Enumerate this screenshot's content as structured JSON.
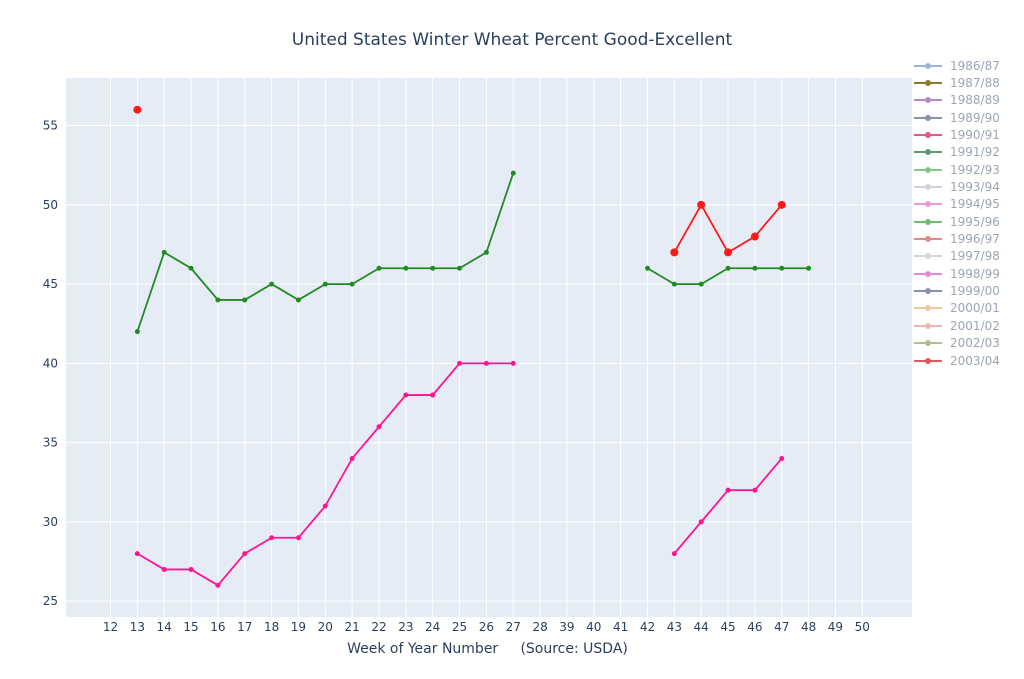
{
  "chart_data": {
    "type": "line",
    "title": "United States Winter Wheat Percent Good-Excellent",
    "xlabel": "Week of Year Number     (Source: USDA)",
    "ylabel": "",
    "x_categories": [
      "12",
      "13",
      "14",
      "15",
      "16",
      "17",
      "18",
      "19",
      "20",
      "21",
      "22",
      "23",
      "24",
      "25",
      "26",
      "27",
      "28",
      "39",
      "40",
      "41",
      "42",
      "43",
      "44",
      "45",
      "46",
      "47",
      "48",
      "49",
      "50"
    ],
    "ylim": [
      24,
      58
    ],
    "yticks": [
      25,
      30,
      35,
      40,
      45,
      50,
      55
    ],
    "grid": true,
    "legend_position": "right",
    "legend": [
      {
        "label": "1986/87",
        "color": "#9db3d8"
      },
      {
        "label": "1987/88",
        "color": "#8a7a2a"
      },
      {
        "label": "1988/89",
        "color": "#b48ac8"
      },
      {
        "label": "1989/90",
        "color": "#8a92a8"
      },
      {
        "label": "1990/91",
        "color": "#e8568a"
      },
      {
        "label": "1991/92",
        "color": "#5c9a6e"
      },
      {
        "label": "1992/93",
        "color": "#7fc88a"
      },
      {
        "label": "1993/94",
        "color": "#cfd3da"
      },
      {
        "label": "1994/95",
        "color": "#e89ad8"
      },
      {
        "label": "1995/96",
        "color": "#6fbf72"
      },
      {
        "label": "1996/97",
        "color": "#e08a8a"
      },
      {
        "label": "1997/98",
        "color": "#d3d6dc"
      },
      {
        "label": "1998/99",
        "color": "#e08ad8"
      },
      {
        "label": "1999/00",
        "color": "#8a90b0"
      },
      {
        "label": "2000/01",
        "color": "#f2c79a"
      },
      {
        "label": "2001/02",
        "color": "#f0b8b0"
      },
      {
        "label": "2002/03",
        "color": "#a8c48a"
      },
      {
        "label": "2003/04",
        "color": "#e05a5a"
      }
    ],
    "series": [
      {
        "color": "#228b22",
        "marker_size": 2.5,
        "segments": [
          {
            "x": [
              "13",
              "14",
              "15",
              "16",
              "17",
              "18",
              "19",
              "20",
              "21",
              "22",
              "23",
              "24",
              "25",
              "26",
              "27"
            ],
            "y": [
              42,
              47,
              46,
              44,
              44,
              45,
              44,
              45,
              45,
              46,
              46,
              46,
              46,
              47,
              52
            ]
          },
          {
            "x": [
              "42",
              "43",
              "44",
              "45",
              "46",
              "47",
              "48"
            ],
            "y": [
              46,
              45,
              45,
              46,
              46,
              46,
              46
            ]
          }
        ]
      },
      {
        "color": "#ff1493",
        "marker_size": 2.5,
        "segments": [
          {
            "x": [
              "13",
              "14",
              "15",
              "16",
              "17",
              "18",
              "19",
              "20",
              "21",
              "22",
              "23",
              "24",
              "25",
              "26",
              "27"
            ],
            "y": [
              28,
              27,
              27,
              26,
              28,
              29,
              29,
              31,
              34,
              36,
              38,
              38,
              40,
              40,
              40
            ]
          },
          {
            "x": [
              "43",
              "44",
              "45",
              "46",
              "47"
            ],
            "y": [
              28,
              30,
              32,
              32,
              34
            ]
          }
        ]
      },
      {
        "color": "#ff1a1a",
        "marker_size": 4,
        "segments": [
          {
            "x": [
              "13"
            ],
            "y": [
              56
            ]
          },
          {
            "x": [
              "43",
              "44",
              "45",
              "46",
              "47"
            ],
            "y": [
              47,
              50,
              47,
              48,
              50
            ]
          }
        ]
      }
    ]
  }
}
